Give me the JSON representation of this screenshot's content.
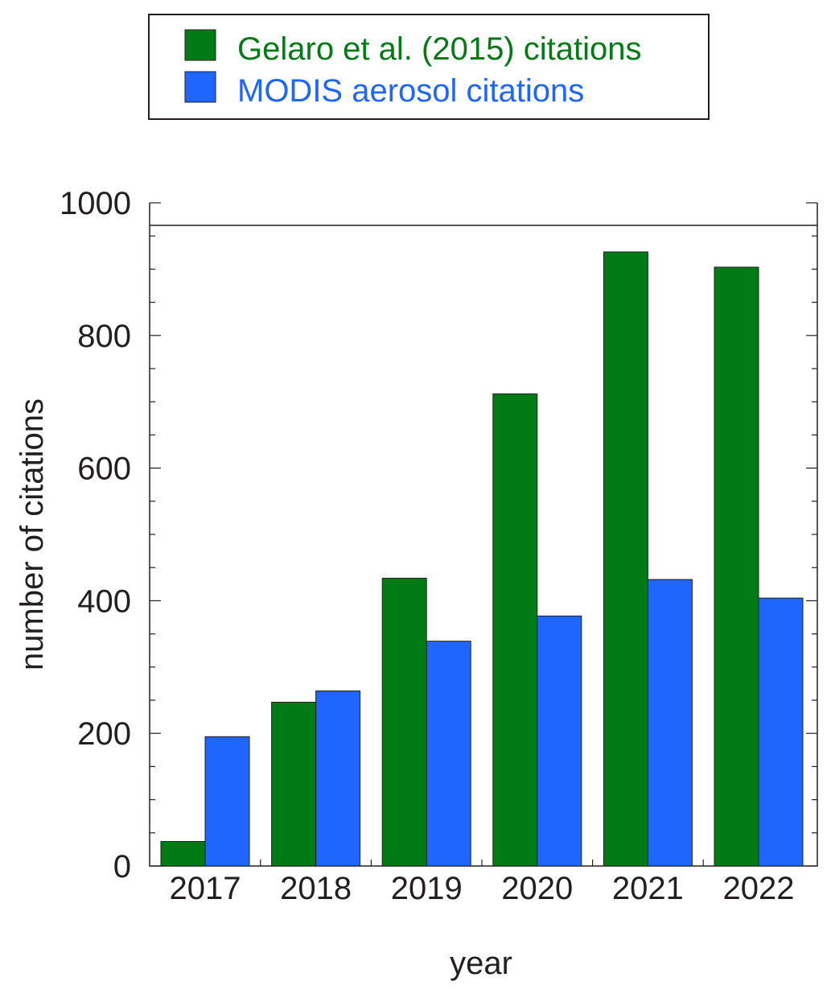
{
  "chart_data": {
    "type": "bar",
    "title": "",
    "xlabel": "year",
    "ylabel": "number of citations",
    "categories": [
      "2017",
      "2018",
      "2019",
      "2020",
      "2021",
      "2022"
    ],
    "series": [
      {
        "name": "Gelaro et al. (2015) citations",
        "color": "#007a14",
        "values": [
          37,
          247,
          434,
          712,
          926,
          903
        ]
      },
      {
        "name": "MODIS aerosol citations",
        "color": "#1f66fe",
        "values": [
          195,
          264,
          339,
          377,
          432,
          404
        ]
      }
    ],
    "ylim": [
      0,
      1000
    ],
    "yticks": [
      "0",
      "200",
      "400",
      "600",
      "800",
      "1000"
    ],
    "grid": false,
    "legend_position": "top"
  }
}
